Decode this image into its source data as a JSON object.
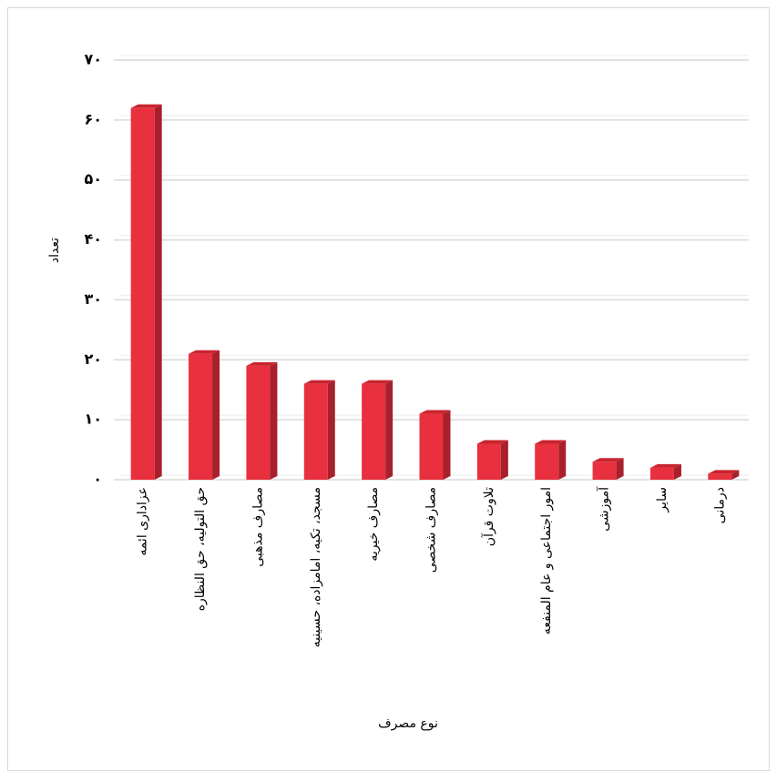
{
  "chart_data": {
    "type": "bar",
    "x_label": "نوع مصرف",
    "y_label": "تعداد",
    "categories": [
      "عزاداری ائمه",
      "حق التولیه، حق النظاره",
      "مصارف مذهبی",
      "مسجد، تکیه، امامزاده، حسینیه",
      "مصارف خیریه",
      "مصارف شخصی",
      "تلاوت قرآن",
      "امور اجتماعی و عام المنفعه",
      "آموزشی",
      "سایر",
      "درمانی"
    ],
    "values": [
      62,
      21,
      19,
      16,
      16,
      11,
      6,
      6,
      3,
      2,
      1
    ],
    "color": "#e8303e",
    "ylim": [
      0,
      70
    ],
    "yticks": [
      {
        "value": 0,
        "label": "٠"
      },
      {
        "value": 10,
        "label": "١٠"
      },
      {
        "value": 20,
        "label": "٢٠"
      },
      {
        "value": 30,
        "label": "٣٠"
      },
      {
        "value": 40,
        "label": "۴٠"
      },
      {
        "value": 50,
        "label": "۵٠"
      },
      {
        "value": 60,
        "label": "۶٠"
      },
      {
        "value": 70,
        "label": "٧٠"
      }
    ],
    "grid": true
  }
}
